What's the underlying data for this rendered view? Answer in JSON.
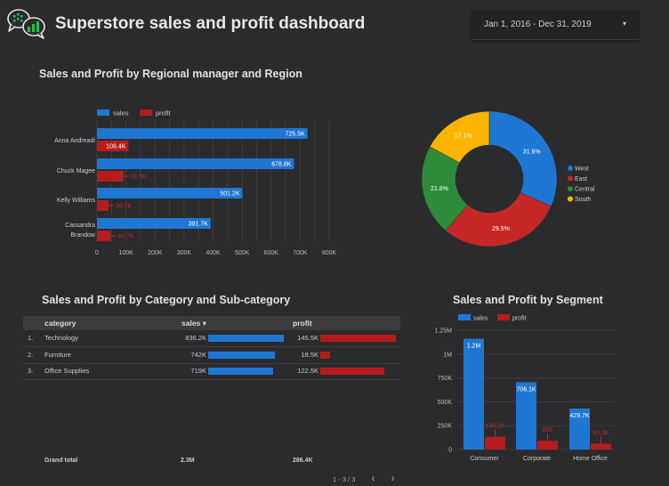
{
  "header": {
    "title": "Superstore sales and profit dashboard",
    "date_range": "Jan 1, 2016 - Dec 31, 2019",
    "logo_icon": "chat-chart-logo-icon",
    "dropdown_icon": "caret-down-icon"
  },
  "colors": {
    "sales": "#1f77d4",
    "profit": "#b71c1c",
    "east": "#c62828",
    "central": "#2e8b3a",
    "south": "#fbb400"
  },
  "region_chart": {
    "title": "Sales and Profit by Regional manager and Region",
    "chart_data": {
      "type": "bar",
      "orientation": "horizontal",
      "categories": [
        "Anna Andreadi",
        "Chuck Magee",
        "Kelly Williams",
        "Cassandra Brandow"
      ],
      "series": [
        {
          "name": "sales",
          "values": [
            725.5,
            678.8,
            501.2,
            391.7
          ],
          "labels": [
            "725.5K",
            "678.8K",
            "501.2K",
            "391.7K"
          ]
        },
        {
          "name": "profit",
          "values": [
            108.4,
            91.5,
            39.7,
            46.7
          ],
          "labels": [
            "108.4K",
            "91.5K",
            "39.7K",
            "46.7K"
          ]
        }
      ],
      "ticks": [
        "0",
        "100K",
        "200K",
        "300K",
        "400K",
        "500K",
        "600K",
        "700K",
        "800K"
      ],
      "xlim": [
        0,
        800
      ],
      "legend": "top-left"
    }
  },
  "pie_chart": {
    "chart_data": {
      "type": "pie",
      "donut": true,
      "labels": [
        "West",
        "East",
        "Central",
        "South"
      ],
      "values": [
        31.6,
        29.5,
        21.8,
        17.1
      ],
      "value_labels": [
        "31.6%",
        "29.5%",
        "21.8%",
        "17.1%"
      ],
      "legend": "right"
    }
  },
  "category_table": {
    "title": "Sales and Profit by Category and Sub-category",
    "columns": {
      "category": "category",
      "sales": "sales",
      "sort_indicator": "▾",
      "profit": "profit"
    },
    "rows": [
      {
        "index": "1.",
        "category": "Technology",
        "sales": "836.2K",
        "sales_value": 836.2,
        "profit": "145.5K",
        "profit_value": 145.5
      },
      {
        "index": "2.",
        "category": "Furniture",
        "sales": "742K",
        "sales_value": 742,
        "profit": "18.5K",
        "profit_value": 18.5
      },
      {
        "index": "3.",
        "category": "Office Supplies",
        "sales": "719K",
        "sales_value": 719,
        "profit": "122.5K",
        "profit_value": 122.5
      }
    ],
    "grand_total": {
      "label": "Grand total",
      "sales": "2.3M",
      "profit": "286.4K"
    },
    "pager": {
      "text": "1 - 3 / 3",
      "prev": "‹",
      "next": "›"
    }
  },
  "segment_chart": {
    "title": "Sales and Profit by Segment",
    "chart_data": {
      "type": "bar",
      "categories": [
        "Consumer",
        "Corporate",
        "Home Office"
      ],
      "series": [
        {
          "name": "sales",
          "values": [
            1161.4,
            706.1,
            429.7
          ],
          "labels": [
            "1.2M",
            "706.1K",
            "429.7K"
          ]
        },
        {
          "name": "profit",
          "values": [
            134.1,
            92,
            60.3
          ],
          "labels": [
            "134.1K",
            "92K",
            "60.3K"
          ]
        }
      ],
      "ticks": [
        "0",
        "250K",
        "500K",
        "750K",
        "1M",
        "1.25M"
      ],
      "ylim": [
        0,
        1250
      ],
      "legend": "top-left"
    }
  }
}
